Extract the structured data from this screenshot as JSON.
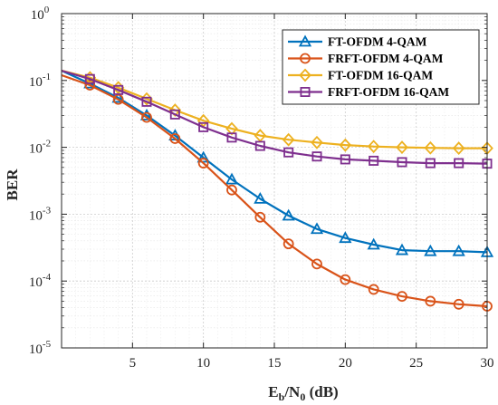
{
  "chart_data": {
    "type": "line",
    "title": "",
    "xlabel": {
      "main": "E",
      "sub1": "b",
      "mid": "/N",
      "sub2": "0",
      "tail": " (dB)"
    },
    "ylabel": "BER",
    "y_scale": "log",
    "xlim": [
      0,
      30
    ],
    "ylim": [
      1e-05,
      1
    ],
    "grid": true,
    "legend_position": "top-right",
    "x_ticks": [
      5,
      10,
      15,
      20,
      25,
      30
    ],
    "x_tick_labels": [
      "5",
      "10",
      "15",
      "20",
      "25",
      "30"
    ],
    "y_ticks": [
      {
        "value": 1e-05,
        "base": "10",
        "exp": "-5"
      },
      {
        "value": 0.0001,
        "base": "10",
        "exp": "-4"
      },
      {
        "value": 0.001,
        "base": "10",
        "exp": "-3"
      },
      {
        "value": 0.01,
        "base": "10",
        "exp": "-2"
      },
      {
        "value": 0.1,
        "base": "10",
        "exp": "-1"
      },
      {
        "value": 1,
        "base": "10",
        "exp": "0"
      }
    ],
    "series": [
      {
        "name": "FT-OFDM 4-QAM",
        "color": "#0072BD",
        "marker": "triangle",
        "x": [
          0,
          2,
          4,
          6,
          8,
          10,
          12,
          14,
          16,
          18,
          20,
          22,
          24,
          26,
          28,
          30
        ],
        "y": [
          0.14,
          0.09,
          0.055,
          0.03,
          0.015,
          0.007,
          0.0033,
          0.0017,
          0.00095,
          0.0006,
          0.00044,
          0.00035,
          0.00029,
          0.00028,
          0.00028,
          0.00027
        ]
      },
      {
        "name": "FRFT-OFDM 4-QAM",
        "color": "#D95319",
        "marker": "circle",
        "x": [
          0,
          2,
          4,
          6,
          8,
          10,
          12,
          14,
          16,
          18,
          20,
          22,
          24,
          26,
          28,
          30
        ],
        "y": [
          0.12,
          0.085,
          0.052,
          0.028,
          0.0135,
          0.0058,
          0.0023,
          0.0009,
          0.00036,
          0.00018,
          0.000105,
          7.5e-05,
          5.9e-05,
          5e-05,
          4.5e-05,
          4.2e-05
        ]
      },
      {
        "name": "FT-OFDM 16-QAM",
        "color": "#EDB120",
        "marker": "diamond",
        "x": [
          0,
          2,
          4,
          6,
          8,
          10,
          12,
          14,
          16,
          18,
          20,
          22,
          24,
          26,
          28,
          30
        ],
        "y": [
          0.14,
          0.11,
          0.078,
          0.053,
          0.036,
          0.025,
          0.019,
          0.015,
          0.013,
          0.0118,
          0.0108,
          0.0103,
          0.01,
          0.0098,
          0.0097,
          0.0097
        ]
      },
      {
        "name": "FRFT-OFDM 16-QAM",
        "color": "#7E2F8E",
        "marker": "square",
        "x": [
          0,
          2,
          4,
          6,
          8,
          10,
          12,
          14,
          16,
          18,
          20,
          22,
          24,
          26,
          28,
          30
        ],
        "y": [
          0.14,
          0.105,
          0.072,
          0.048,
          0.031,
          0.02,
          0.014,
          0.0105,
          0.0084,
          0.0073,
          0.0066,
          0.0063,
          0.006,
          0.0058,
          0.0058,
          0.0057
        ]
      }
    ]
  }
}
